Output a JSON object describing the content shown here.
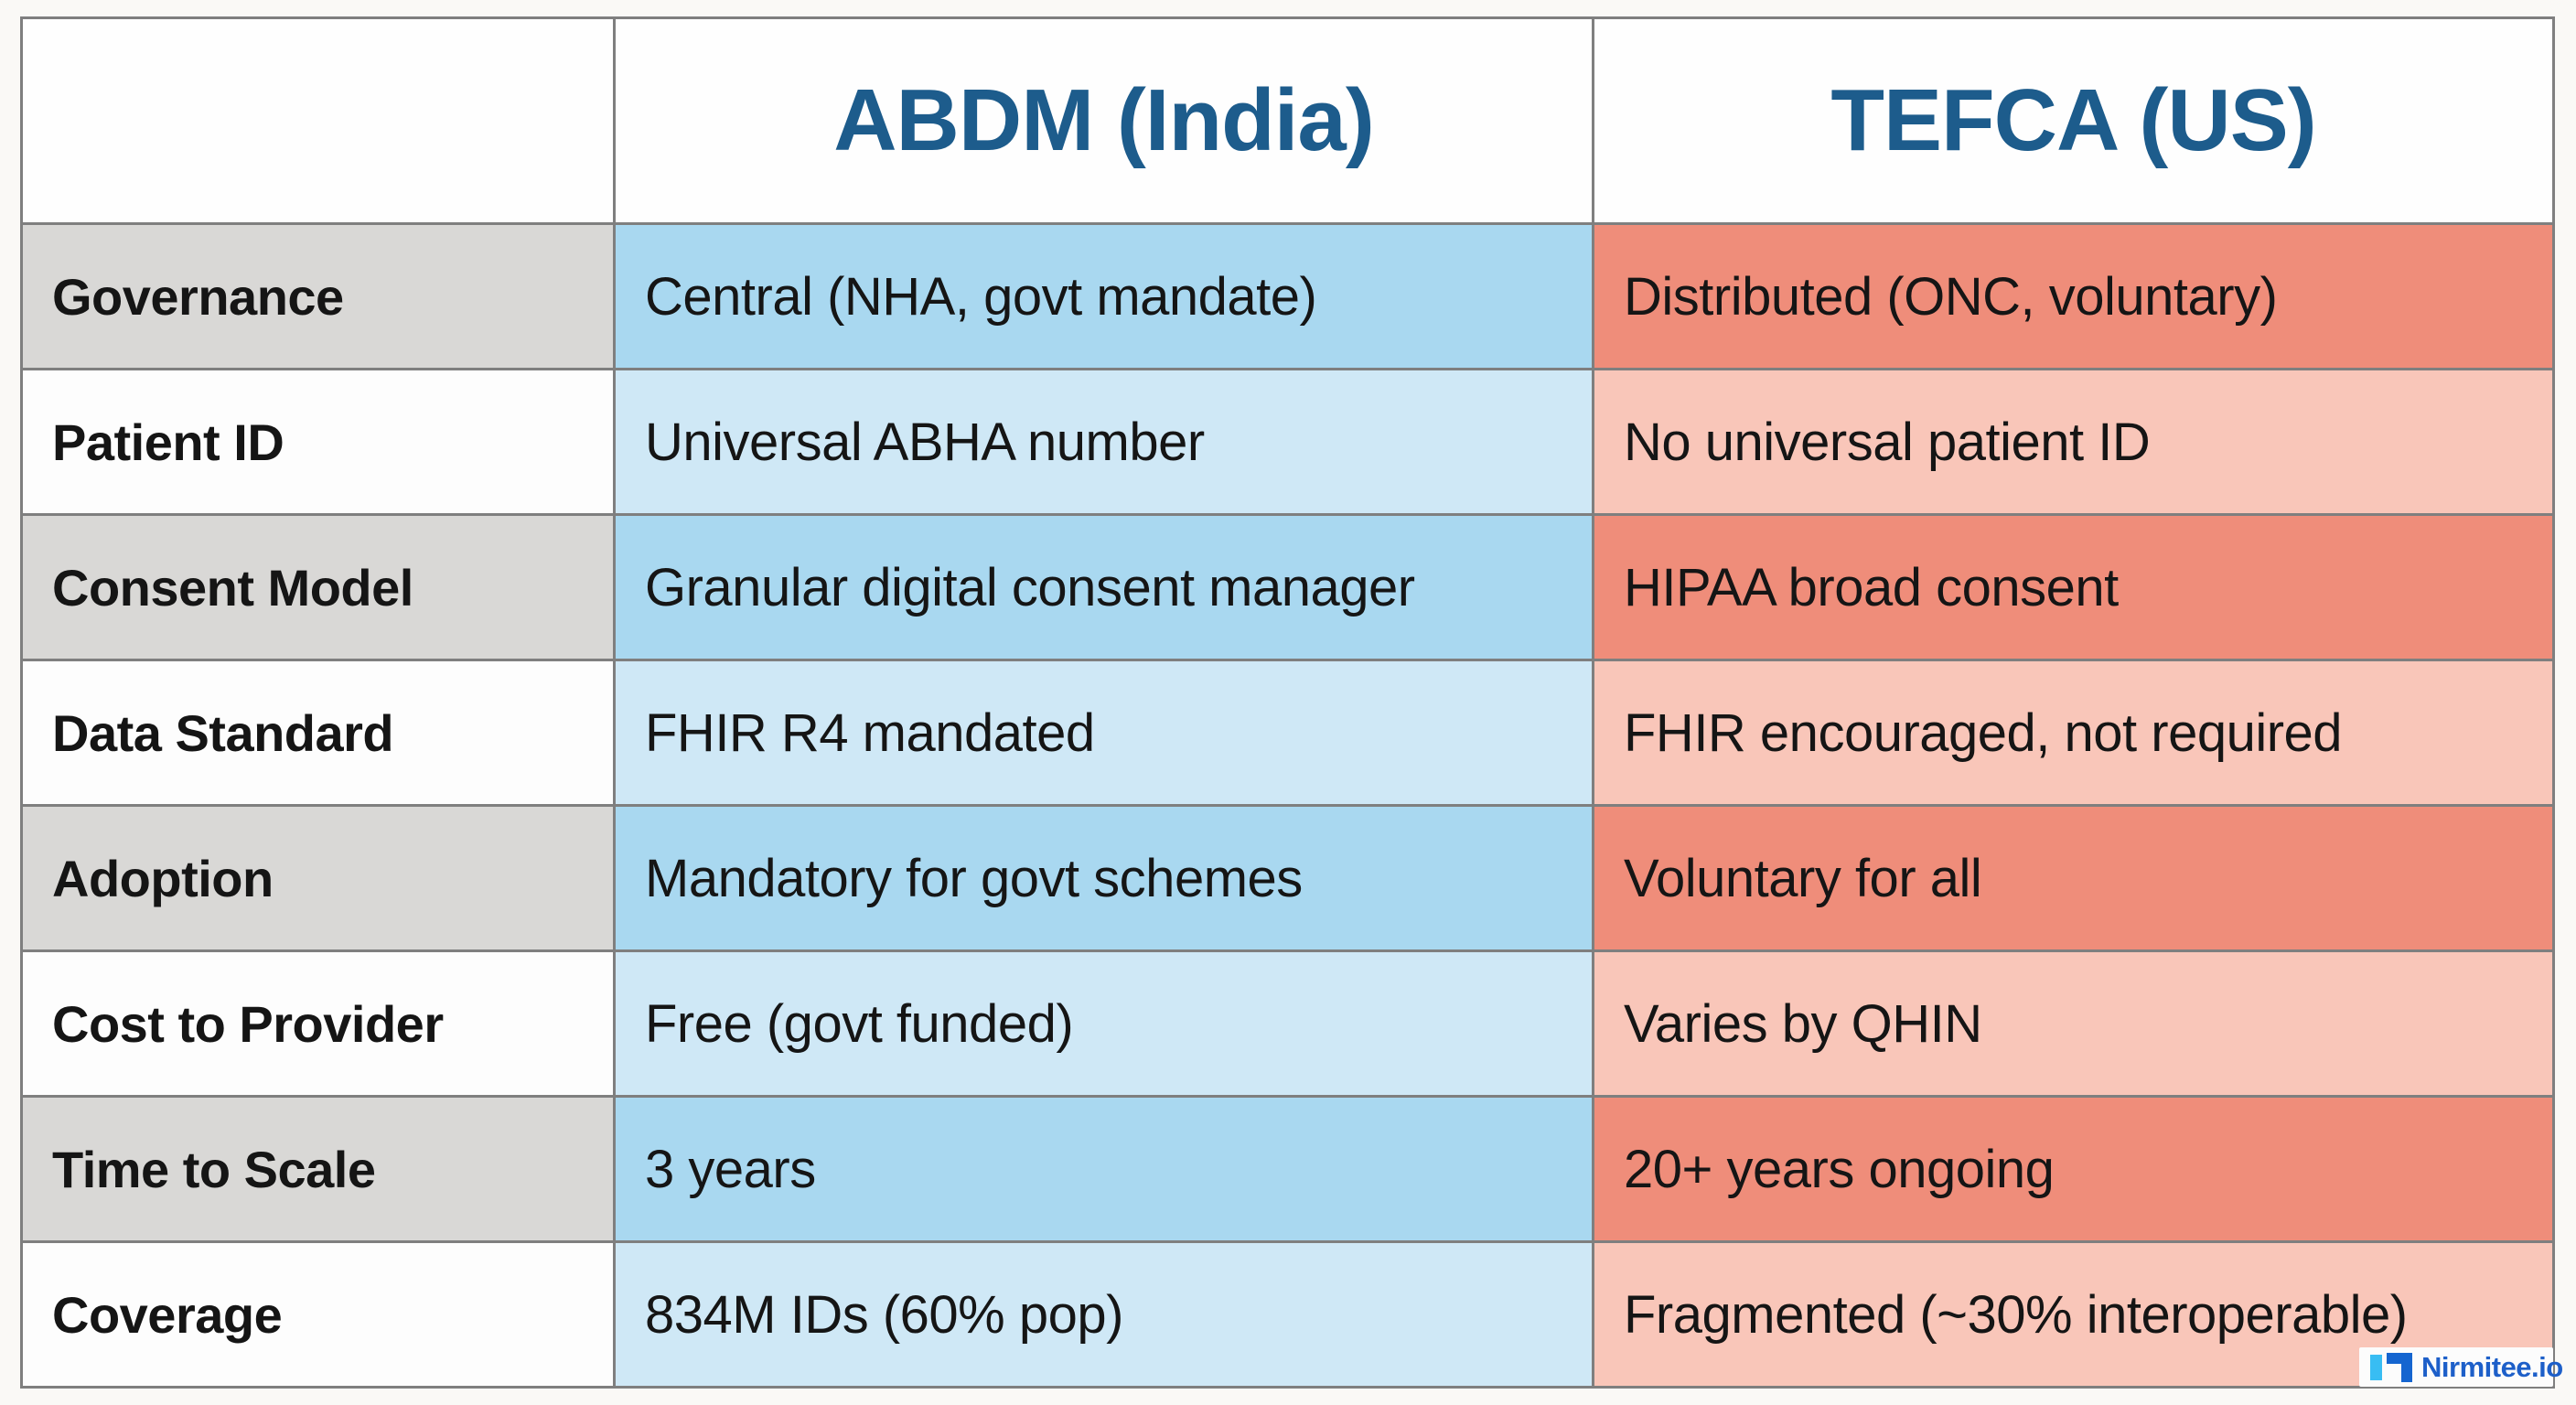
{
  "chart_data": {
    "type": "table",
    "title": "ABDM (India) vs TEFCA (US) comparison table",
    "columns": [
      "",
      "ABDM (India)",
      "TEFCA (US)"
    ],
    "rows": [
      {
        "label": "Governance",
        "abdm": "Central (NHA, govt mandate)",
        "tefca": "Distributed (ONC, voluntary)"
      },
      {
        "label": "Patient ID",
        "abdm": "Universal ABHA number",
        "tefca": "No universal patient ID"
      },
      {
        "label": "Consent Model",
        "abdm": "Granular digital consent manager",
        "tefca": "HIPAA broad consent"
      },
      {
        "label": "Data Standard",
        "abdm": "FHIR R4 mandated",
        "tefca": "FHIR encouraged, not required"
      },
      {
        "label": "Adoption",
        "abdm": "Mandatory for govt schemes",
        "tefca": "Voluntary for all"
      },
      {
        "label": "Cost to Provider",
        "abdm": "Free (govt funded)",
        "tefca": "Varies by QHIN"
      },
      {
        "label": "Time to Scale",
        "abdm": "3 years",
        "tefca": "20+ years ongoing"
      },
      {
        "label": "Coverage",
        "abdm": "834M IDs (60% pop)",
        "tefca": "Fragmented (~30% interoperable)"
      }
    ],
    "layout": {
      "grid": "on",
      "row_shading": "alternating strong/light per row"
    }
  },
  "colors": {
    "header_text": "#1d5c8c",
    "border": "#7f7f7f",
    "label_strong": "#d9d8d6",
    "label_light": "#fdfdfd",
    "blue_strong": "#a9d8f0",
    "blue_light": "#cfe8f6",
    "salmon_strong": "#ef8d7a",
    "salmon_light": "#f9c6b9",
    "logo_cyan": "#38bdf3",
    "logo_blue": "#1565d0",
    "logo_text": "#1d5fc9"
  },
  "logo": {
    "text": "Nirmitee.io"
  }
}
